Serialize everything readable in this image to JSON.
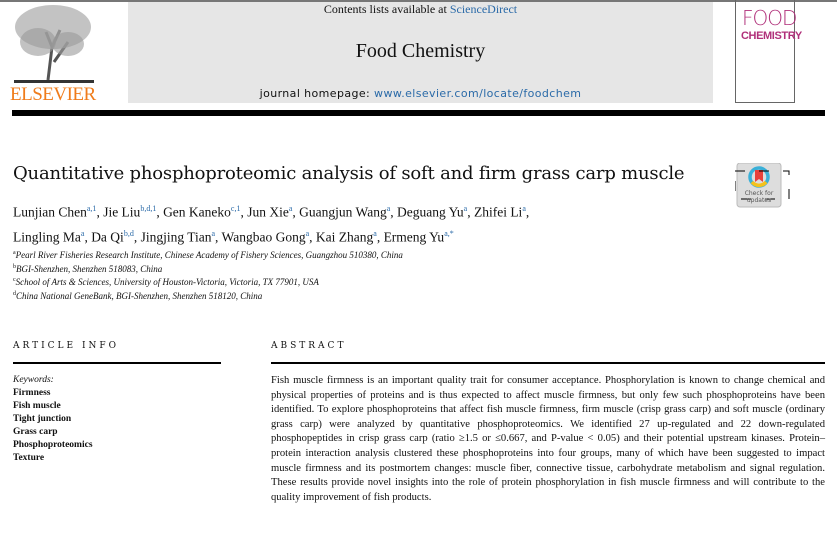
{
  "header": {
    "publisher": "ELSEVIER",
    "contents_prefix": "Contents lists available at ",
    "contents_link": "ScienceDirect",
    "journal_title": "Food Chemistry",
    "homepage_prefix": "journal homepage: ",
    "homepage_link": "www.elsevier.com/locate/foodchem",
    "cover_line1": "FOOD",
    "cover_line2": "CHEMISTRY",
    "crossmark_label": "Check for updates"
  },
  "article": {
    "title": "Quantitative phosphoproteomic analysis of soft and firm grass carp muscle",
    "authors_line1": [
      {
        "name": "Lunjian Chen",
        "sup": "a,1"
      },
      {
        "name": "Jie Liu",
        "sup": "b,d,1"
      },
      {
        "name": "Gen Kaneko",
        "sup": "c,1"
      },
      {
        "name": "Jun Xie",
        "sup": "a"
      },
      {
        "name": "Guangjun Wang",
        "sup": "a"
      },
      {
        "name": "Deguang Yu",
        "sup": "a"
      },
      {
        "name": "Zhifei Li",
        "sup": "a"
      }
    ],
    "authors_line2": [
      {
        "name": "Lingling Ma",
        "sup": "a"
      },
      {
        "name": "Da Qi",
        "sup": "b,d"
      },
      {
        "name": "Jingjing Tian",
        "sup": "a"
      },
      {
        "name": "Wangbao Gong",
        "sup": "a"
      },
      {
        "name": "Kai Zhang",
        "sup": "a"
      },
      {
        "name": "Ermeng Yu",
        "sup": "a,*"
      }
    ],
    "affiliations": [
      {
        "sup": "a",
        "text": "Pearl River Fisheries Research Institute, Chinese Academy of Fishery Sciences, Guangzhou 510380, China"
      },
      {
        "sup": "b",
        "text": "BGI-Shenzhen, Shenzhen 518083, China"
      },
      {
        "sup": "c",
        "text": "School of Arts & Sciences, University of Houston-Victoria, Victoria, TX 77901, USA"
      },
      {
        "sup": "d",
        "text": "China National GeneBank, BGI-Shenzhen, Shenzhen 518120, China"
      }
    ]
  },
  "article_info": {
    "heading": "ARTICLE INFO",
    "keywords_label": "Keywords:",
    "keywords": [
      "Firmness",
      "Fish muscle",
      "Tight junction",
      "Grass carp",
      "Phosphoproteomics",
      "Texture"
    ]
  },
  "abstract": {
    "heading": "ABSTRACT",
    "text": "Fish muscle firmness is an important quality trait for consumer acceptance. Phosphorylation is known to change chemical and physical properties of proteins and is thus expected to affect muscle firmness, but only few such phosphoproteins have been identified. To explore phosphoproteins that affect fish muscle firmness, firm muscle (crisp grass carp) and soft muscle (ordinary grass carp) were analyzed by quantitative phosphoproteomics. We identified 27 up-regulated and 22 down-regulated phosphopeptides in crisp grass carp (ratio ≥1.5 or ≤0.667, and P-value < 0.05) and their potential upstream kinases. Protein–protein interaction analysis clustered these phosphoproteins into four groups, many of which have been suggested to impact muscle firmness and its postmortem changes: muscle fiber, connective tissue, carbohydrate metabolism and signal regulation. These results provide novel insights into the role of protein phosphorylation in fish muscle firmness and will contribute to the quality improvement of fish products."
  },
  "colors": {
    "link": "#2a6aa8",
    "elsevier_orange": "#f07c1b",
    "cover_magenta": "#b0307a",
    "header_grey": "#e6e6e6"
  }
}
